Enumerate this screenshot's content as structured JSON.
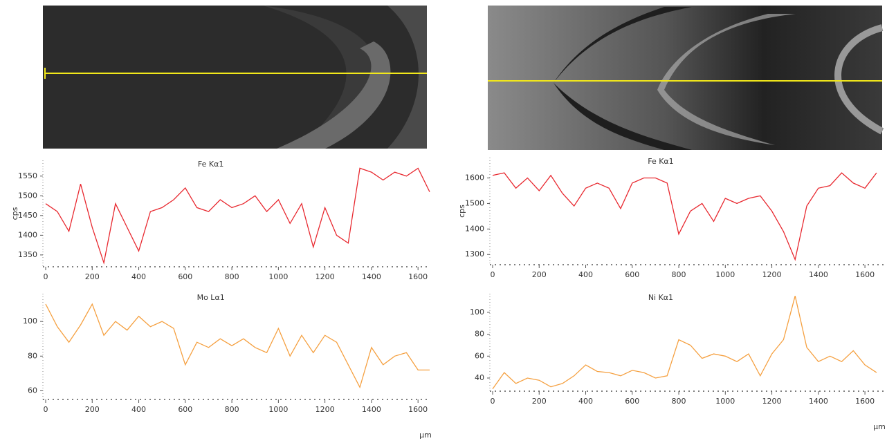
{
  "chart_data": [
    {
      "type": "line",
      "title": "Fe Kα1",
      "y_label": "cps",
      "color": "#e8282f",
      "x": [
        0,
        50,
        100,
        150,
        200,
        250,
        300,
        350,
        400,
        450,
        500,
        550,
        600,
        650,
        700,
        750,
        800,
        850,
        900,
        950,
        1000,
        1050,
        1100,
        1150,
        1200,
        1250,
        1300,
        1350,
        1400,
        1450,
        1500,
        1550,
        1600,
        1650
      ],
      "values": [
        1480,
        1460,
        1410,
        1530,
        1420,
        1330,
        1480,
        1420,
        1360,
        1460,
        1470,
        1490,
        1520,
        1470,
        1460,
        1490,
        1470,
        1480,
        1500,
        1460,
        1490,
        1430,
        1480,
        1370,
        1470,
        1400,
        1380,
        1570,
        1560,
        1540,
        1560,
        1550,
        1570,
        1510
      ],
      "xlim": [
        0,
        1650
      ],
      "xticks": [
        0,
        200,
        400,
        600,
        800,
        1000,
        1200,
        1400,
        1600
      ],
      "ylim": [
        1320,
        1590
      ],
      "yticks": [
        1350,
        1400,
        1450,
        1500,
        1550
      ]
    },
    {
      "type": "line",
      "title": "Mo Lα1",
      "x_label": "µm",
      "color": "#f5a040",
      "x": [
        0,
        50,
        100,
        150,
        200,
        250,
        300,
        350,
        400,
        450,
        500,
        550,
        600,
        650,
        700,
        750,
        800,
        850,
        900,
        950,
        1000,
        1050,
        1100,
        1150,
        1200,
        1250,
        1300,
        1350,
        1400,
        1450,
        1500,
        1550,
        1600,
        1650
      ],
      "values": [
        110,
        97,
        88,
        98,
        110,
        92,
        100,
        95,
        103,
        97,
        100,
        96,
        75,
        88,
        85,
        90,
        86,
        90,
        85,
        82,
        96,
        80,
        92,
        82,
        92,
        88,
        75,
        62,
        85,
        75,
        80,
        82,
        72,
        72
      ],
      "xlim": [
        0,
        1650
      ],
      "xticks": [
        0,
        200,
        400,
        600,
        800,
        1000,
        1200,
        1400,
        1600
      ],
      "ylim": [
        55,
        116
      ],
      "yticks": [
        60,
        80,
        100
      ]
    },
    {
      "type": "line",
      "title": "Fe Kα1",
      "y_label": "cps",
      "color": "#e8282f",
      "x": [
        0,
        50,
        100,
        150,
        200,
        250,
        300,
        350,
        400,
        450,
        500,
        550,
        600,
        650,
        700,
        750,
        800,
        850,
        900,
        950,
        1000,
        1050,
        1100,
        1150,
        1200,
        1250,
        1300,
        1350,
        1400,
        1450,
        1500,
        1550,
        1600,
        1650
      ],
      "values": [
        1610,
        1620,
        1560,
        1600,
        1550,
        1610,
        1540,
        1490,
        1560,
        1580,
        1560,
        1480,
        1580,
        1600,
        1600,
        1580,
        1380,
        1470,
        1500,
        1430,
        1520,
        1500,
        1520,
        1530,
        1470,
        1390,
        1280,
        1490,
        1560,
        1570,
        1620,
        1580,
        1560,
        1620
      ],
      "xlim": [
        0,
        1680
      ],
      "xticks": [
        0,
        200,
        400,
        600,
        800,
        1000,
        1200,
        1400,
        1600
      ],
      "ylim": [
        1260,
        1680
      ],
      "yticks": [
        1300,
        1400,
        1500,
        1600
      ]
    },
    {
      "type": "line",
      "title": "Ni Kα1",
      "x_label": "µm",
      "color": "#f5a040",
      "x": [
        0,
        50,
        100,
        150,
        200,
        250,
        300,
        350,
        400,
        450,
        500,
        550,
        600,
        650,
        700,
        750,
        800,
        850,
        900,
        950,
        1000,
        1050,
        1100,
        1150,
        1200,
        1250,
        1300,
        1350,
        1400,
        1450,
        1500,
        1550,
        1600,
        1650
      ],
      "values": [
        30,
        45,
        35,
        40,
        38,
        32,
        35,
        42,
        52,
        46,
        45,
        42,
        47,
        45,
        40,
        42,
        75,
        70,
        58,
        62,
        60,
        55,
        62,
        42,
        62,
        75,
        115,
        68,
        55,
        60,
        55,
        65,
        52,
        45
      ],
      "xlim": [
        0,
        1680
      ],
      "xticks": [
        0,
        200,
        400,
        600,
        800,
        1000,
        1200,
        1400,
        1600
      ],
      "ylim": [
        28,
        117
      ],
      "yticks": [
        40,
        60,
        80,
        100
      ]
    }
  ]
}
